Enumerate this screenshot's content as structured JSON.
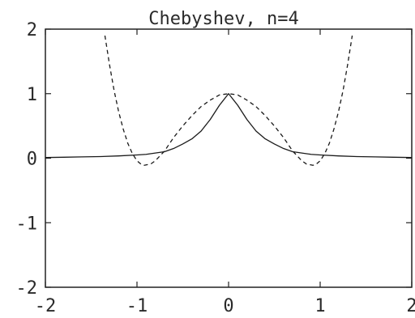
{
  "chart_data": {
    "type": "line",
    "title": "Chebyshev, n=4",
    "xlabel": "",
    "ylabel": "",
    "xlim": [
      -2,
      2
    ],
    "ylim": [
      -2,
      2
    ],
    "x_ticks": [
      -2,
      -1,
      0,
      1,
      2
    ],
    "y_ticks": [
      -2,
      -1,
      0,
      1,
      2
    ],
    "x_tick_labels": [
      "-2",
      "-1",
      "0",
      "1",
      "2"
    ],
    "y_tick_labels": [
      "-2",
      "-1",
      "0",
      "1",
      "2"
    ],
    "grid": false,
    "series": [
      {
        "style": "solid",
        "color": "#1a1a1a",
        "x": [
          -2,
          -1.8,
          -1.6,
          -1.4,
          -1.2,
          -1.0,
          -0.9,
          -0.8,
          -0.7,
          -0.6,
          -0.5,
          -0.4,
          -0.3,
          -0.2,
          -0.1,
          0.0,
          0.1,
          0.2,
          0.3,
          0.4,
          0.5,
          0.6,
          0.7,
          0.8,
          0.9,
          1.0,
          1.2,
          1.4,
          1.6,
          1.8,
          2.0
        ],
        "y": [
          0.01,
          0.015,
          0.02,
          0.025,
          0.035,
          0.05,
          0.06,
          0.08,
          0.1,
          0.15,
          0.22,
          0.3,
          0.42,
          0.6,
          0.82,
          1.0,
          0.82,
          0.6,
          0.42,
          0.3,
          0.22,
          0.15,
          0.1,
          0.08,
          0.06,
          0.05,
          0.035,
          0.025,
          0.02,
          0.015,
          0.01
        ]
      },
      {
        "style": "dashed",
        "color": "#1a1a1a",
        "x": [
          -1.35,
          -1.3,
          -1.25,
          -1.2,
          -1.15,
          -1.1,
          -1.05,
          -1.0,
          -0.95,
          -0.92,
          -0.85,
          -0.8,
          -0.7,
          -0.6,
          -0.5,
          -0.4,
          -0.3,
          -0.2,
          -0.1,
          0.0,
          0.1,
          0.2,
          0.3,
          0.4,
          0.5,
          0.6,
          0.7,
          0.8,
          0.85,
          0.92,
          0.95,
          1.0,
          1.05,
          1.1,
          1.15,
          1.2,
          1.25,
          1.3,
          1.35
        ],
        "y": [
          1.9,
          1.45,
          1.05,
          0.72,
          0.45,
          0.23,
          0.07,
          -0.04,
          -0.1,
          -0.11,
          -0.09,
          -0.04,
          0.11,
          0.32,
          0.5,
          0.66,
          0.8,
          0.9,
          0.98,
          1.0,
          0.98,
          0.9,
          0.8,
          0.66,
          0.5,
          0.32,
          0.11,
          -0.04,
          -0.09,
          -0.11,
          -0.1,
          -0.04,
          0.07,
          0.23,
          0.45,
          0.72,
          1.05,
          1.45,
          1.9
        ]
      }
    ]
  }
}
